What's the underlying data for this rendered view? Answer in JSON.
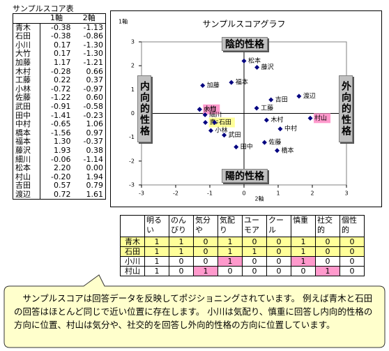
{
  "score_table": {
    "title": "サンプルスコア表",
    "headers": [
      "1軸",
      "2軸"
    ],
    "rows": [
      [
        "青木",
        "-0.38",
        "-1.13"
      ],
      [
        "石田",
        "-0.38",
        "-0.86"
      ],
      [
        "小川",
        "0.17",
        "-1.30"
      ],
      [
        "大竹",
        "0.17",
        "-1.30"
      ],
      [
        "加藤",
        "1.17",
        "-1.21"
      ],
      [
        "木村",
        "-0.28",
        "0.66"
      ],
      [
        "工藤",
        "0.22",
        "0.37"
      ],
      [
        "小林",
        "-0.72",
        "-0.97"
      ],
      [
        "佐藤",
        "-1.22",
        "0.60"
      ],
      [
        "武田",
        "-0.91",
        "-0.58"
      ],
      [
        "田中",
        "-1.41",
        "-0.23"
      ],
      [
        "中村",
        "-0.65",
        "1.06"
      ],
      [
        "橋本",
        "-1.56",
        "0.97"
      ],
      [
        "福本",
        "1.30",
        "-0.37"
      ],
      [
        "藤沢",
        "1.93",
        "0.38"
      ],
      [
        "細川",
        "-0.06",
        "-1.14"
      ],
      [
        "松本",
        "2.20",
        "0.00"
      ],
      [
        "村山",
        "-0.20",
        "1.94"
      ],
      [
        "吉田",
        "0.57",
        "0.79"
      ],
      [
        "渡辺",
        "0.72",
        "1.61"
      ]
    ]
  },
  "chart_data": {
    "type": "scatter",
    "title": "サンプルスコアグラフ",
    "xlabel": "2軸",
    "ylabel": "1軸",
    "names": [
      "青木",
      "石田",
      "小川",
      "大竹",
      "加藤",
      "木村",
      "工藤",
      "小林",
      "佐藤",
      "武田",
      "田中",
      "中村",
      "橋本",
      "福本",
      "藤沢",
      "細川",
      "松本",
      "村山",
      "吉田",
      "渡辺"
    ],
    "x": [
      -1.13,
      -0.86,
      -1.3,
      -1.3,
      -1.21,
      0.66,
      0.37,
      -0.97,
      0.6,
      -0.58,
      -0.23,
      1.06,
      0.97,
      -0.37,
      0.38,
      -1.14,
      0.0,
      1.94,
      0.79,
      1.61
    ],
    "y": [
      -0.38,
      -0.38,
      0.17,
      0.17,
      1.17,
      -0.28,
      0.22,
      -0.72,
      -1.22,
      -0.91,
      -1.41,
      -0.65,
      -1.56,
      1.3,
      1.93,
      -0.06,
      2.2,
      -0.2,
      0.57,
      0.72
    ],
    "color": "#000080",
    "label_box_colors": [
      "#ffff99",
      "#ffff99",
      "#ff99cc",
      null,
      null,
      null,
      null,
      null,
      null,
      null,
      null,
      null,
      null,
      null,
      null,
      null,
      null,
      "#ff99cc",
      null,
      null
    ],
    "xlim": [
      -3,
      3
    ],
    "ylim": [
      -3,
      3
    ],
    "xticks": [
      -3,
      -2,
      -1,
      0,
      1,
      2,
      3
    ],
    "yticks": [
      -3,
      -2,
      -1,
      0,
      1,
      2,
      3
    ],
    "annotations": {
      "top": "陰的性格",
      "bottom": "陽的性格",
      "left": "内向的性格",
      "right": "外向的性格"
    }
  },
  "answer_table": {
    "headers": [
      "明るい",
      "のんびり",
      "気分や",
      "気配り",
      "ユーモア",
      "クール",
      "慎重",
      "社交的",
      "個性的"
    ],
    "rows": [
      {
        "name": "青木",
        "values": [
          1,
          1,
          0,
          1,
          0,
          0,
          1,
          0,
          0
        ],
        "fill": "#ffff99",
        "highlight_cells": []
      },
      {
        "name": "石田",
        "values": [
          1,
          1,
          0,
          1,
          1,
          0,
          1,
          0,
          0
        ],
        "fill": "#ffff99",
        "highlight_cells": []
      },
      {
        "name": "小川",
        "values": [
          1,
          0,
          0,
          1,
          0,
          0,
          1,
          0,
          0
        ],
        "fill": "#ffffff",
        "highlight_cells": [
          3,
          6
        ]
      },
      {
        "name": "村山",
        "values": [
          1,
          0,
          1,
          0,
          0,
          0,
          0,
          1,
          0
        ],
        "fill": "#ffffff",
        "highlight_cells": [
          2,
          7
        ]
      }
    ],
    "highlight_color": "#ff99cc"
  },
  "note": "サンプルスコアは回答データを反映してポジショニングされています。 例えば青木と石田の回答はほとんど同じで近い位置に存在します。 小川は気配り、慎重に回答し内向的性格の方向に位置、村山は気分や、社交的を回答し外向的性格の方向に位置しています。"
}
